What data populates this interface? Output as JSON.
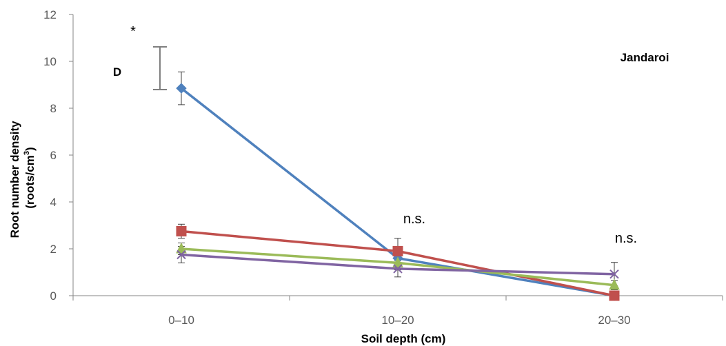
{
  "chart_data": {
    "type": "line",
    "title": "",
    "categories": [
      "0–10",
      "10–20",
      "20–30"
    ],
    "xlabel": "Soil depth (cm)",
    "ylabel": "Root number density",
    "ylabel_line2_prefix": "(roots/cm",
    "ylabel_line2_sup": "3",
    "ylabel_line2_suffix": ")",
    "ylim": [
      0,
      12
    ],
    "yticks": [
      "0",
      "2",
      "4",
      "6",
      "8",
      "10",
      "12"
    ],
    "grid": false,
    "legend": "none",
    "series": [
      {
        "color": "#4F81BD",
        "marker": "diamond",
        "values": [
          8.85,
          1.6,
          0.0
        ],
        "errors": [
          0.7,
          0.2,
          0.0
        ]
      },
      {
        "color": "#C0504D",
        "marker": "square",
        "values": [
          2.75,
          1.9,
          0.0
        ],
        "errors": [
          0.3,
          0.55,
          0.0
        ]
      },
      {
        "color": "#9BBB59",
        "marker": "triangle",
        "values": [
          2.0,
          1.4,
          0.45
        ],
        "errors": [
          0.25,
          0.3,
          0.2
        ]
      },
      {
        "color": "#8064A2",
        "marker": "x",
        "values": [
          1.75,
          1.15,
          0.92
        ],
        "errors": [
          0.35,
          0.35,
          0.5
        ]
      }
    ],
    "annotations": {
      "site_label": "Jandaroi",
      "lsd_label": "D",
      "lsd_star": "*",
      "lsd_range": [
        8.8,
        10.6
      ],
      "group_labels": [
        "n.s.",
        "n.s."
      ]
    }
  }
}
